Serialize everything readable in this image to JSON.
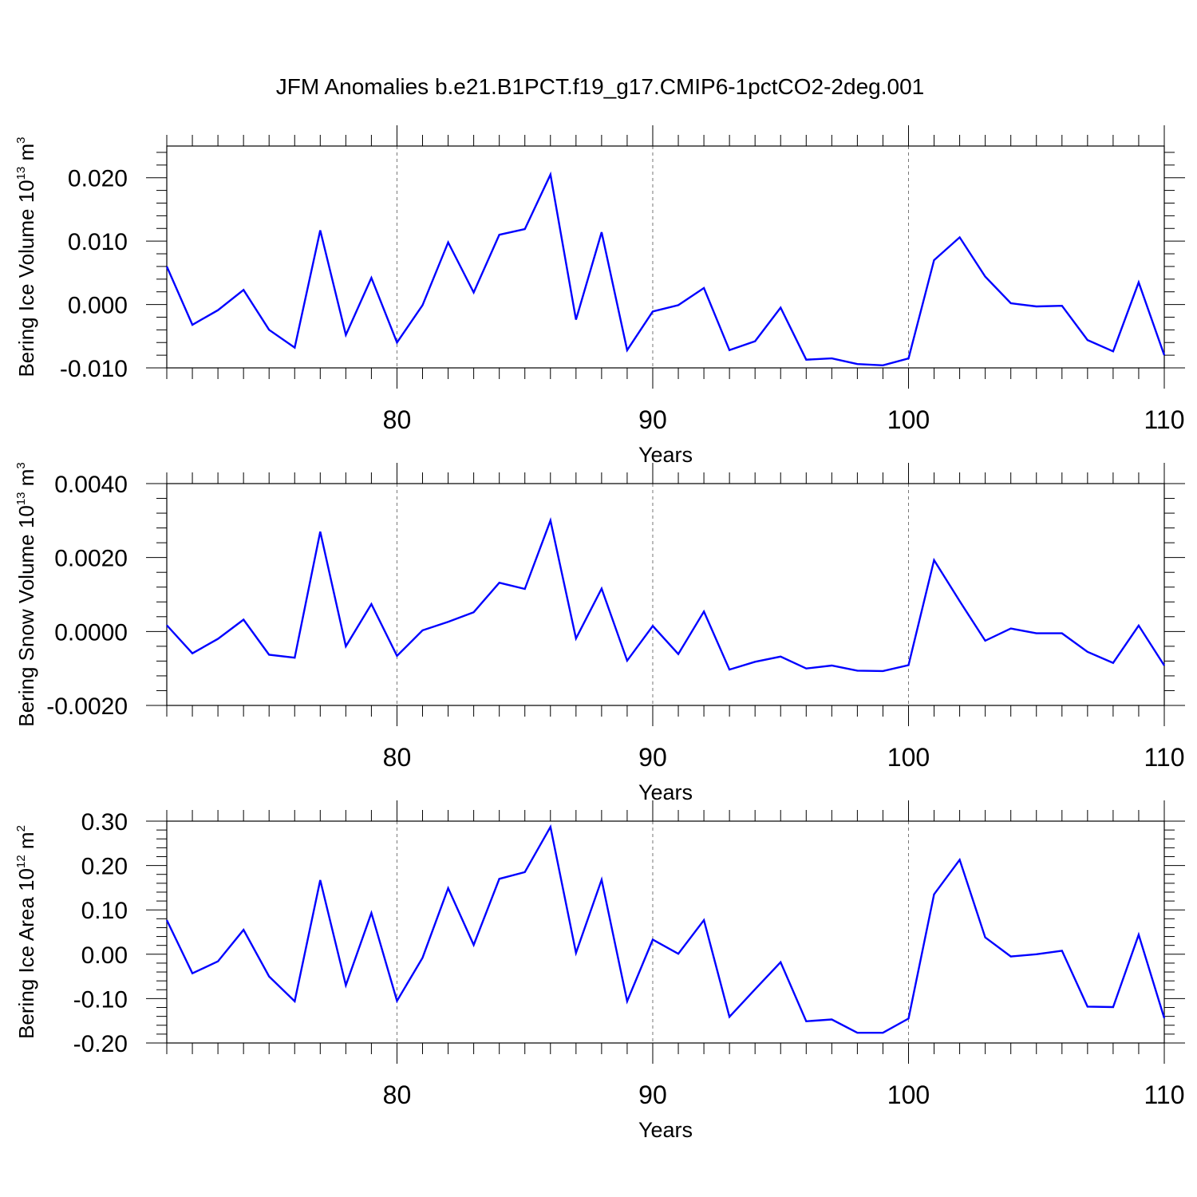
{
  "chart_data": {
    "title": "JFM Anomalies b.e21.B1PCT.f19_g17.CMIP6-1pctCO2-2deg.001",
    "panels": [
      {
        "type": "line",
        "ylabel": "Bering Ice Volume 10",
        "ylabel_exp": "13",
        "ylabel_unit": " m",
        "ylabel_unit_exp": "3",
        "xlabel": "Years",
        "xlim": [
          71,
          110
        ],
        "ylim": [
          -0.01,
          0.025
        ],
        "yticks": [
          -0.01,
          0.0,
          0.01,
          0.02
        ],
        "ytick_labels": [
          "-0.010",
          "0.000",
          "0.010",
          "0.020"
        ],
        "xticks": [
          80,
          90,
          100,
          110
        ],
        "xtick_labels": [
          "80",
          "90",
          "100",
          "110"
        ],
        "series": [
          {
            "color": "#0000ff",
            "x": [
              71,
              72,
              73,
              74,
              75,
              76,
              77,
              78,
              79,
              80,
              81,
              82,
              83,
              84,
              85,
              86,
              87,
              88,
              89,
              90,
              91,
              92,
              93,
              94,
              95,
              96,
              97,
              98,
              99,
              100,
              101,
              102,
              103,
              104,
              105,
              106,
              107,
              108,
              109,
              110
            ],
            "values": [
              0.006,
              -0.0032,
              -0.0009,
              0.0023,
              -0.004,
              -0.0068,
              0.0117,
              -0.0048,
              0.0042,
              -0.006,
              -0.0001,
              0.0098,
              0.0019,
              0.011,
              0.0119,
              0.0205,
              -0.0024,
              0.0114,
              -0.0072,
              -0.0011,
              -0.0001,
              0.0026,
              -0.0072,
              -0.0058,
              -0.0005,
              -0.0087,
              -0.0085,
              -0.0094,
              -0.0096,
              -0.0085,
              0.007,
              0.0106,
              0.0044,
              0.0002,
              -0.0003,
              -0.0002,
              -0.0056,
              -0.0074,
              0.0035,
              -0.008
            ]
          }
        ]
      },
      {
        "type": "line",
        "ylabel": "Bering Snow Volume 10",
        "ylabel_exp": "13",
        "ylabel_unit": " m",
        "ylabel_unit_exp": "3",
        "xlabel": "Years",
        "xlim": [
          71,
          110
        ],
        "ylim": [
          -0.002,
          0.004
        ],
        "yticks": [
          -0.002,
          0.0,
          0.002,
          0.004
        ],
        "ytick_labels": [
          "-0.0020",
          "0.0000",
          "0.0020",
          "0.0040"
        ],
        "xticks": [
          80,
          90,
          100,
          110
        ],
        "xtick_labels": [
          "80",
          "90",
          "100",
          "110"
        ],
        "series": [
          {
            "color": "#0000ff",
            "x": [
              71,
              72,
              73,
              74,
              75,
              76,
              77,
              78,
              79,
              80,
              81,
              82,
              83,
              84,
              85,
              86,
              87,
              88,
              89,
              90,
              91,
              92,
              93,
              94,
              95,
              96,
              97,
              98,
              99,
              100,
              101,
              102,
              103,
              104,
              105,
              106,
              107,
              108,
              109,
              110
            ],
            "values": [
              0.00017,
              -0.00059,
              -0.0002,
              0.00032,
              -0.00063,
              -0.00071,
              0.0027,
              -0.0004,
              0.00074,
              -0.00066,
              3e-05,
              0.00026,
              0.00052,
              0.00132,
              0.00115,
              0.003,
              -0.00019,
              0.00116,
              -0.00079,
              0.00015,
              -0.00061,
              0.00054,
              -0.00103,
              -0.00082,
              -0.00068,
              -0.001,
              -0.00092,
              -0.00106,
              -0.00107,
              -0.00091,
              0.00193,
              0.00082,
              -0.00025,
              8e-05,
              -5e-05,
              -5e-05,
              -0.00055,
              -0.00085,
              0.00016,
              -0.00092
            ]
          }
        ]
      },
      {
        "type": "line",
        "ylabel": "Bering Ice Area 10",
        "ylabel_exp": "12",
        "ylabel_unit": " m",
        "ylabel_unit_exp": "2",
        "xlabel": "Years",
        "xlim": [
          71,
          110
        ],
        "ylim": [
          -0.2,
          0.3
        ],
        "yticks": [
          -0.2,
          -0.1,
          0.0,
          0.1,
          0.2,
          0.3
        ],
        "ytick_labels": [
          "-0.20",
          "-0.10",
          "0.00",
          "0.10",
          "0.20",
          "0.30"
        ],
        "xticks": [
          80,
          90,
          100,
          110
        ],
        "xtick_labels": [
          "80",
          "90",
          "100",
          "110"
        ],
        "series": [
          {
            "color": "#0000ff",
            "x": [
              71,
              72,
              73,
              74,
              75,
              76,
              77,
              78,
              79,
              80,
              81,
              82,
              83,
              84,
              85,
              86,
              87,
              88,
              89,
              90,
              91,
              92,
              93,
              94,
              95,
              96,
              97,
              98,
              99,
              100,
              101,
              102,
              103,
              104,
              105,
              106,
              107,
              108,
              109,
              110
            ],
            "values": [
              0.077,
              -0.043,
              -0.016,
              0.055,
              -0.05,
              -0.106,
              0.167,
              -0.07,
              0.093,
              -0.105,
              -0.008,
              0.149,
              0.021,
              0.17,
              0.185,
              0.287,
              0.003,
              0.168,
              -0.106,
              0.033,
              0.001,
              0.077,
              -0.141,
              -0.079,
              -0.018,
              -0.151,
              -0.147,
              -0.177,
              -0.177,
              -0.145,
              0.135,
              0.213,
              0.038,
              -0.005,
              0.0,
              0.008,
              -0.118,
              -0.119,
              0.044,
              -0.144
            ]
          }
        ]
      }
    ]
  }
}
